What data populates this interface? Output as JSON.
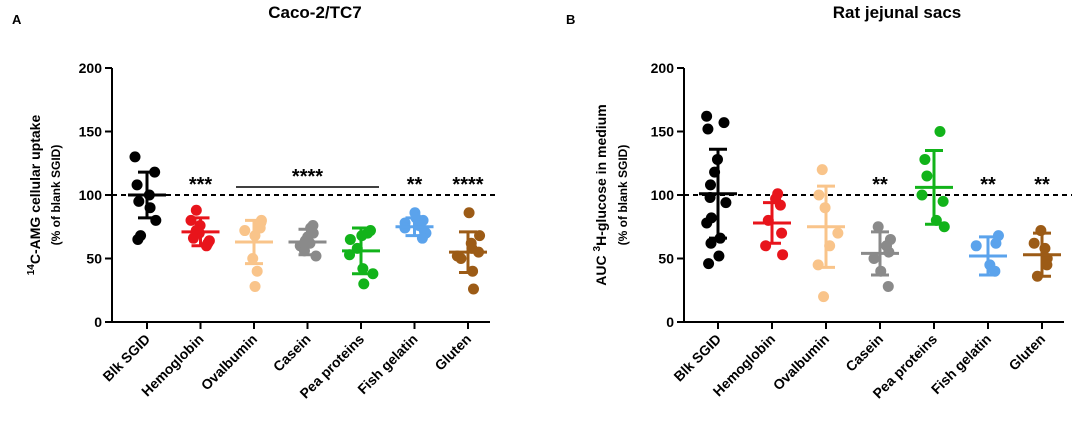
{
  "chart_data": [
    {
      "type": "scatter",
      "panel_label": "A",
      "title": "Caco-2/TC7",
      "ylabel_sup": "14",
      "ylabel_main": "C-AMG cellular uptake",
      "ylabel_sub": "(% of blank SGID)",
      "xlabel": "",
      "ylim": [
        0,
        200
      ],
      "yticks": [
        0,
        50,
        100,
        150,
        200
      ],
      "reference_line": 100,
      "categories": [
        "Blk SGID",
        "Hemoglobin",
        "Ovalbumin",
        "Casein",
        "Pea proteins",
        "Fish gelatin",
        "Gluten"
      ],
      "colors": [
        "#000000",
        "#e8141b",
        "#f9c48a",
        "#8a8a8a",
        "#12b31a",
        "#5ba3ec",
        "#9c5b16"
      ],
      "series": [
        {
          "name": "Blk SGID",
          "mean": 100,
          "sd": 18,
          "points": [
            130,
            118,
            108,
            100,
            95,
            90,
            80,
            68,
            65
          ],
          "significance": ""
        },
        {
          "name": "Hemoglobin",
          "mean": 71,
          "sd": 11,
          "points": [
            88,
            80,
            76,
            72,
            70,
            66,
            64,
            62,
            60
          ],
          "significance": "***"
        },
        {
          "name": "Ovalbumin",
          "mean": 63,
          "sd": 17,
          "points": [
            80,
            79,
            78,
            74,
            72,
            68,
            50,
            40,
            28
          ],
          "significance": ""
        },
        {
          "name": "Casein",
          "mean": 63,
          "sd": 10,
          "points": [
            76,
            74,
            70,
            67,
            64,
            62,
            60,
            56,
            52
          ],
          "significance": ""
        },
        {
          "name": "Pea proteins",
          "mean": 56,
          "sd": 18,
          "points": [
            72,
            70,
            68,
            65,
            58,
            53,
            42,
            38,
            30
          ],
          "significance": ""
        },
        {
          "name": "Fish gelatin",
          "mean": 75,
          "sd": 7,
          "points": [
            86,
            82,
            80,
            78,
            76,
            74,
            72,
            70,
            66
          ],
          "significance": "**"
        },
        {
          "name": "Gluten",
          "mean": 55,
          "sd": 16,
          "points": [
            86,
            68,
            62,
            58,
            55,
            52,
            50,
            40,
            26
          ],
          "significance": "****"
        }
      ],
      "group_bracket": {
        "from": "Ovalbumin",
        "to": "Pea proteins",
        "label": "****"
      }
    },
    {
      "type": "scatter",
      "panel_label": "B",
      "title": "Rat jejunal sacs",
      "ylabel_pre": "AUC ",
      "ylabel_sup": "3",
      "ylabel_main": "H-glucose in medium",
      "ylabel_sub": "(% of blank SGID)",
      "xlabel": "",
      "ylim": [
        0,
        200
      ],
      "yticks": [
        0,
        50,
        100,
        150,
        200
      ],
      "reference_line": 100,
      "categories": [
        "Blk SGID",
        "Hemoglobin",
        "Ovalbumin",
        "Casein",
        "Pea proteins",
        "Fish gelatin",
        "Gluten"
      ],
      "colors": [
        "#000000",
        "#e8141b",
        "#f9c48a",
        "#8a8a8a",
        "#12b31a",
        "#5ba3ec",
        "#9c5b16"
      ],
      "series": [
        {
          "name": "Blk SGID",
          "mean": 101,
          "sd": 35,
          "points": [
            162,
            157,
            152,
            128,
            118,
            108,
            98,
            94,
            82,
            78,
            66,
            62,
            52,
            46
          ],
          "significance": ""
        },
        {
          "name": "Hemoglobin",
          "mean": 78,
          "sd": 16,
          "points": [
            101,
            97,
            92,
            80,
            70,
            60,
            53
          ],
          "significance": ""
        },
        {
          "name": "Ovalbumin",
          "mean": 75,
          "sd": 32,
          "points": [
            120,
            100,
            90,
            70,
            60,
            45,
            20
          ],
          "significance": ""
        },
        {
          "name": "Casein",
          "mean": 54,
          "sd": 17,
          "points": [
            75,
            65,
            60,
            55,
            50,
            40,
            28
          ],
          "significance": "**"
        },
        {
          "name": "Pea proteins",
          "mean": 106,
          "sd": 29,
          "points": [
            150,
            128,
            115,
            100,
            95,
            80,
            75
          ],
          "significance": ""
        },
        {
          "name": "Fish gelatin",
          "mean": 52,
          "sd": 15,
          "points": [
            68,
            62,
            60,
            45,
            40
          ],
          "significance": "**"
        },
        {
          "name": "Gluten",
          "mean": 53,
          "sd": 17,
          "points": [
            72,
            62,
            58,
            50,
            45,
            36
          ],
          "significance": "**"
        }
      ]
    }
  ]
}
